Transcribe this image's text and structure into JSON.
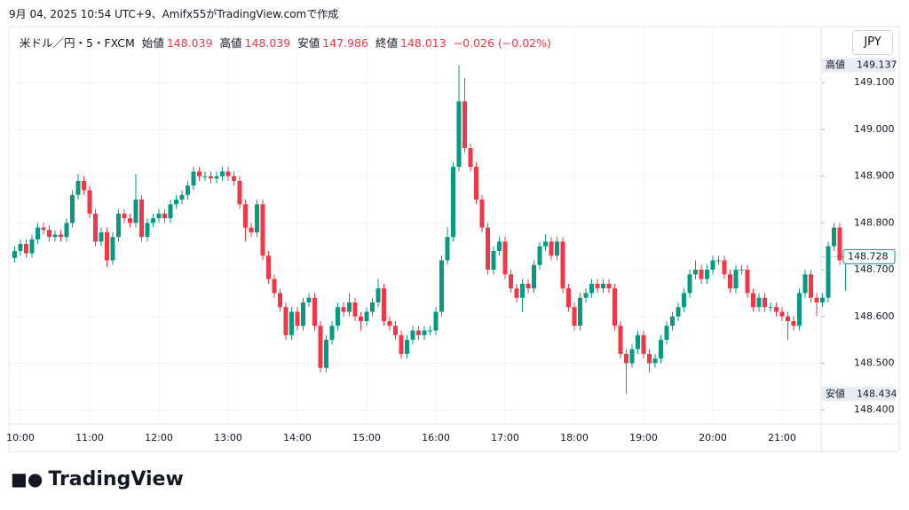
{
  "header": "9月 04, 2025 10:54 UTC+9、Amifx55がTradingView.comで作成",
  "brand": "TradingView",
  "currency_button": "JPY",
  "chart_data": {
    "type": "candlestick",
    "symbol": "米ドル／円・5・FXCM",
    "legend": [
      {
        "label": "始値",
        "value": 148.039
      },
      {
        "label": "高値",
        "value": 148.039
      },
      {
        "label": "安値",
        "value": 147.986
      },
      {
        "label": "終値",
        "value": 148.013
      }
    ],
    "change": "−0.026 (−0.02%)",
    "up_color": "#089981",
    "down_color": "#f23645",
    "grid": true,
    "ylim": [
      148.37,
      149.22
    ],
    "yticks": [
      {
        "value": 148.4,
        "label": "148.400"
      },
      {
        "value": 148.5,
        "label": "148.500"
      },
      {
        "value": 148.6,
        "label": "148.600"
      },
      {
        "value": 148.7,
        "label": "148.700"
      },
      {
        "value": 148.8,
        "label": "148.800"
      },
      {
        "value": 148.9,
        "label": "148.900"
      },
      {
        "value": 149.0,
        "label": "149.000"
      },
      {
        "value": 149.1,
        "label": "149.100"
      }
    ],
    "high_marker": {
      "label": "高値",
      "value": 149.137
    },
    "low_marker": {
      "label": "安値",
      "value": 148.434
    },
    "categories": [
      null,
      "10:00",
      null,
      null,
      null,
      null,
      null,
      null,
      null,
      null,
      null,
      null,
      null,
      "11:00",
      null,
      null,
      null,
      null,
      null,
      null,
      null,
      null,
      null,
      null,
      null,
      "12:00",
      null,
      null,
      null,
      null,
      null,
      null,
      null,
      null,
      null,
      null,
      null,
      "13:00",
      null,
      null,
      null,
      null,
      null,
      null,
      null,
      null,
      null,
      null,
      null,
      "14:00",
      null,
      null,
      null,
      null,
      null,
      null,
      null,
      null,
      null,
      null,
      null,
      "15:00",
      null,
      null,
      null,
      null,
      null,
      null,
      null,
      null,
      null,
      null,
      null,
      "16:00",
      null,
      null,
      null,
      null,
      null,
      null,
      null,
      null,
      null,
      null,
      null,
      "17:00",
      null,
      null,
      null,
      null,
      null,
      null,
      null,
      null,
      null,
      null,
      null,
      "18:00",
      null,
      null,
      null,
      null,
      null,
      null,
      null,
      null,
      null,
      null,
      null,
      "19:00",
      null,
      null,
      null,
      null,
      null,
      null,
      null,
      null,
      null,
      null,
      null,
      "20:00",
      null,
      null,
      null,
      null,
      null,
      null,
      null,
      null,
      null,
      null,
      null,
      "21:00",
      null,
      null,
      null,
      null,
      null,
      null,
      null,
      null,
      null,
      null,
      null
    ],
    "open": [
      148.725,
      148.74,
      148.755,
      148.735,
      148.765,
      148.79,
      148.785,
      148.77,
      148.775,
      148.77,
      148.8,
      148.86,
      148.89,
      148.87,
      148.82,
      148.76,
      148.78,
      148.72,
      148.77,
      148.82,
      148.81,
      148.8,
      148.85,
      148.77,
      148.8,
      148.81,
      148.82,
      148.81,
      148.84,
      148.85,
      148.86,
      148.88,
      148.91,
      148.9,
      148.9,
      148.895,
      148.9,
      148.91,
      148.9,
      148.89,
      148.84,
      148.79,
      148.78,
      148.84,
      148.73,
      148.68,
      148.65,
      148.62,
      148.56,
      148.61,
      148.58,
      148.63,
      148.64,
      148.58,
      148.49,
      148.55,
      148.58,
      148.62,
      148.61,
      148.63,
      148.6,
      148.59,
      148.61,
      148.63,
      148.66,
      148.59,
      148.58,
      148.56,
      148.52,
      148.55,
      148.57,
      148.56,
      148.57,
      148.57,
      148.61,
      148.72,
      148.77,
      148.92,
      149.06,
      148.96,
      148.92,
      148.85,
      148.79,
      148.7,
      148.74,
      148.76,
      148.69,
      148.66,
      148.64,
      148.67,
      148.66,
      148.71,
      148.75,
      148.76,
      148.73,
      148.76,
      148.66,
      148.62,
      148.58,
      148.64,
      148.65,
      148.67,
      148.66,
      148.67,
      148.66,
      148.58,
      148.52,
      148.5,
      148.53,
      148.56,
      148.52,
      148.5,
      148.51,
      148.55,
      148.58,
      148.6,
      148.62,
      148.65,
      148.69,
      148.7,
      148.68,
      148.7,
      148.72,
      148.72,
      148.69,
      148.66,
      148.7,
      148.7,
      148.65,
      148.62,
      148.64,
      148.62,
      148.62,
      148.61,
      148.6,
      148.59,
      148.58,
      148.65,
      148.69,
      148.64,
      148.63,
      148.64,
      148.75,
      148.79,
      148.72
    ],
    "high": [
      148.75,
      148.765,
      148.765,
      148.775,
      148.8,
      148.8,
      148.795,
      148.785,
      148.785,
      148.81,
      148.87,
      148.905,
      148.9,
      148.88,
      148.83,
      148.79,
      148.79,
      148.78,
      148.83,
      148.83,
      148.82,
      148.905,
      148.86,
      148.81,
      148.82,
      148.83,
      148.83,
      148.85,
      148.86,
      148.87,
      148.89,
      148.92,
      148.92,
      148.91,
      148.91,
      148.91,
      148.92,
      148.92,
      148.91,
      148.9,
      148.85,
      148.8,
      148.85,
      148.85,
      148.74,
      148.69,
      148.66,
      148.63,
      148.62,
      148.62,
      148.64,
      148.65,
      148.65,
      148.59,
      148.56,
      148.59,
      148.63,
      148.63,
      148.65,
      148.64,
      148.61,
      148.62,
      148.64,
      148.68,
      148.67,
      148.6,
      148.59,
      148.57,
      148.56,
      148.58,
      148.58,
      148.58,
      148.58,
      148.62,
      148.73,
      148.79,
      148.93,
      149.137,
      149.11,
      148.97,
      148.93,
      148.86,
      148.8,
      148.75,
      148.77,
      148.77,
      148.7,
      148.67,
      148.68,
      148.68,
      148.72,
      148.76,
      148.775,
      148.77,
      148.77,
      148.77,
      148.67,
      148.63,
      148.65,
      148.66,
      148.68,
      148.68,
      148.68,
      148.68,
      148.67,
      148.59,
      148.53,
      148.54,
      148.57,
      148.57,
      148.53,
      148.52,
      148.56,
      148.59,
      148.61,
      148.63,
      148.66,
      148.7,
      148.72,
      148.71,
      148.71,
      148.73,
      148.73,
      148.73,
      148.7,
      148.71,
      148.71,
      148.71,
      148.66,
      148.65,
      148.65,
      148.63,
      148.63,
      148.62,
      148.61,
      148.6,
      148.66,
      148.7,
      148.7,
      148.65,
      148.65,
      148.76,
      148.8,
      148.8,
      148.74
    ],
    "low": [
      148.715,
      148.73,
      148.725,
      148.725,
      148.755,
      148.775,
      148.76,
      148.76,
      148.76,
      148.76,
      148.79,
      148.85,
      148.86,
      148.81,
      148.75,
      148.75,
      148.705,
      148.71,
      148.76,
      148.8,
      148.79,
      148.79,
      148.76,
      148.76,
      148.79,
      148.8,
      148.8,
      148.8,
      148.83,
      148.84,
      148.85,
      148.87,
      148.89,
      148.89,
      148.885,
      148.885,
      148.89,
      148.89,
      148.88,
      148.83,
      148.76,
      148.77,
      148.77,
      148.72,
      148.67,
      148.64,
      148.61,
      148.55,
      148.55,
      148.57,
      148.57,
      148.62,
      148.57,
      148.48,
      148.48,
      148.54,
      148.57,
      148.6,
      148.6,
      148.59,
      148.57,
      148.58,
      148.6,
      148.62,
      148.58,
      148.57,
      148.55,
      148.51,
      148.51,
      148.54,
      148.55,
      148.55,
      148.56,
      148.56,
      148.6,
      148.71,
      148.76,
      148.91,
      148.95,
      148.91,
      148.84,
      148.78,
      148.69,
      148.69,
      148.73,
      148.68,
      148.65,
      148.63,
      148.61,
      148.65,
      148.65,
      148.7,
      148.74,
      148.72,
      148.72,
      148.65,
      148.61,
      148.57,
      148.57,
      148.63,
      148.64,
      148.65,
      148.65,
      148.65,
      148.57,
      148.51,
      148.434,
      148.49,
      148.52,
      148.51,
      148.48,
      148.49,
      148.5,
      148.54,
      148.57,
      148.59,
      148.61,
      148.64,
      148.68,
      148.67,
      148.67,
      148.69,
      148.71,
      148.68,
      148.65,
      148.65,
      148.69,
      148.64,
      148.61,
      148.61,
      148.61,
      148.61,
      148.6,
      148.59,
      148.55,
      148.57,
      148.57,
      148.64,
      148.63,
      148.6,
      148.62,
      148.63,
      148.74,
      148.71,
      148.655
    ],
    "close": [
      148.74,
      148.755,
      148.735,
      148.765,
      148.79,
      148.785,
      148.77,
      148.775,
      148.77,
      148.8,
      148.86,
      148.89,
      148.87,
      148.82,
      148.76,
      148.78,
      148.72,
      148.77,
      148.82,
      148.81,
      148.8,
      148.85,
      148.77,
      148.8,
      148.81,
      148.82,
      148.81,
      148.84,
      148.85,
      148.86,
      148.88,
      148.91,
      148.9,
      148.9,
      148.895,
      148.9,
      148.91,
      148.9,
      148.89,
      148.84,
      148.79,
      148.78,
      148.84,
      148.73,
      148.68,
      148.65,
      148.62,
      148.56,
      148.61,
      148.58,
      148.63,
      148.64,
      148.58,
      148.49,
      148.55,
      148.58,
      148.62,
      148.61,
      148.63,
      148.6,
      148.59,
      148.61,
      148.63,
      148.66,
      148.59,
      148.58,
      148.56,
      148.52,
      148.55,
      148.57,
      148.56,
      148.57,
      148.57,
      148.61,
      148.72,
      148.77,
      148.92,
      149.06,
      148.96,
      148.92,
      148.85,
      148.79,
      148.7,
      148.74,
      148.76,
      148.69,
      148.66,
      148.64,
      148.67,
      148.66,
      148.71,
      148.75,
      148.76,
      148.73,
      148.76,
      148.66,
      148.62,
      148.58,
      148.64,
      148.65,
      148.67,
      148.66,
      148.67,
      148.66,
      148.58,
      148.52,
      148.5,
      148.53,
      148.56,
      148.52,
      148.5,
      148.51,
      148.55,
      148.58,
      148.6,
      148.62,
      148.65,
      148.69,
      148.7,
      148.68,
      148.7,
      148.72,
      148.72,
      148.69,
      148.66,
      148.7,
      148.7,
      148.65,
      148.62,
      148.64,
      148.62,
      148.62,
      148.61,
      148.6,
      148.59,
      148.58,
      148.65,
      148.69,
      148.64,
      148.63,
      148.64,
      148.75,
      148.79,
      148.72,
      148.728
    ]
  }
}
